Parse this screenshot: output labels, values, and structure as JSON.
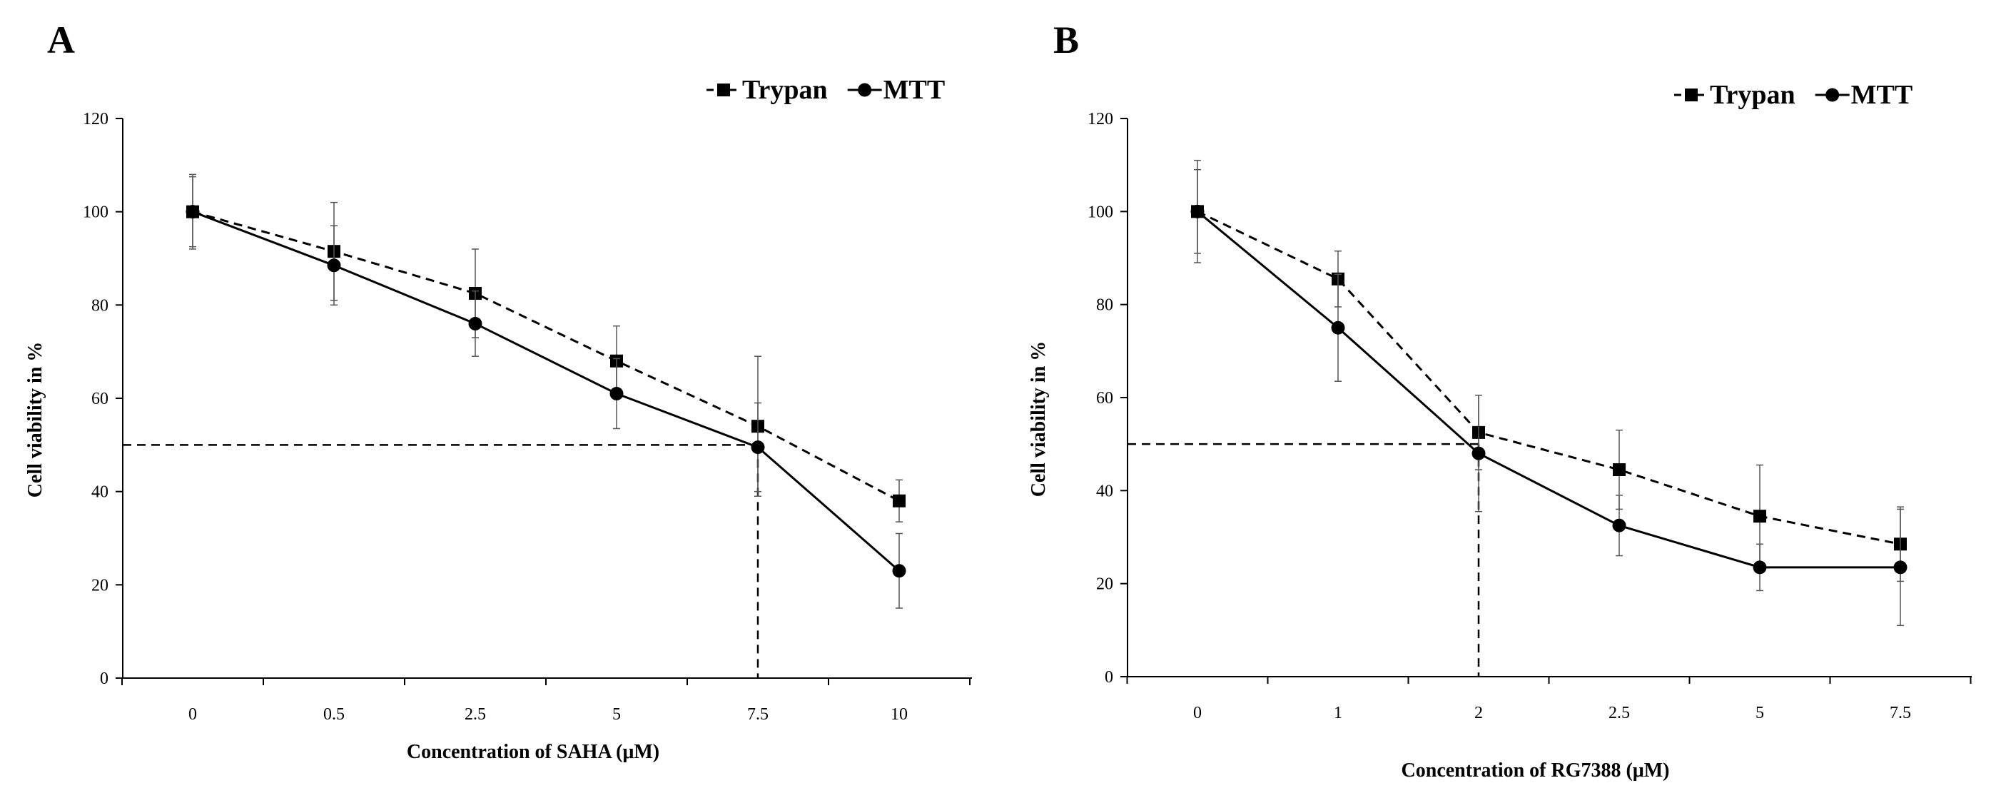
{
  "chart_data": [
    {
      "type": "line",
      "panel": "A",
      "categories": [
        "0",
        "0.5",
        "2.5",
        "5",
        "7.5",
        "10"
      ],
      "xlabel": "Concentration of SAHA (μM)",
      "ylabel": "Cell viability in %",
      "ylim": [
        0,
        120
      ],
      "yticks": [
        0,
        20,
        40,
        60,
        80,
        100,
        120
      ],
      "grid": false,
      "legend_position": "top-right",
      "series": [
        {
          "name": "Trypan",
          "style": "dashed",
          "marker": "square",
          "values": [
            100,
            91.5,
            82.5,
            68,
            54,
            38
          ],
          "errors": [
            8,
            10.5,
            9.5,
            7.5,
            15,
            4.5
          ]
        },
        {
          "name": "MTT",
          "style": "solid",
          "marker": "circle",
          "values": [
            100,
            88.5,
            76,
            61,
            49.5,
            23
          ],
          "errors": [
            7.5,
            8.5,
            7,
            7.5,
            9.5,
            8
          ]
        }
      ],
      "reference_lines": {
        "y": 50,
        "x_category": "7.5"
      }
    },
    {
      "type": "line",
      "panel": "B",
      "categories": [
        "0",
        "1",
        "2",
        "2.5",
        "5",
        "7.5"
      ],
      "xlabel": "Concentration of RG7388 (μM)",
      "ylabel": "Cell viability in %",
      "ylim": [
        0,
        120
      ],
      "yticks": [
        0,
        20,
        40,
        60,
        80,
        100,
        120
      ],
      "grid": false,
      "legend_position": "top-right",
      "series": [
        {
          "name": "Trypan",
          "style": "dashed",
          "marker": "square",
          "values": [
            100,
            85.5,
            52.5,
            44.5,
            34.5,
            28.5
          ],
          "errors": [
            11,
            6,
            8,
            8.5,
            11,
            8
          ]
        },
        {
          "name": "MTT",
          "style": "solid",
          "marker": "circle",
          "values": [
            100,
            75,
            48,
            32.5,
            23.5,
            23.5
          ],
          "errors": [
            9,
            11.5,
            12.5,
            6.5,
            5,
            12.5
          ]
        }
      ],
      "reference_lines": {
        "y": 50,
        "x_category": "2"
      }
    }
  ],
  "colors": {
    "line": "#000000",
    "reference": "#000000",
    "background": "#ffffff"
  }
}
